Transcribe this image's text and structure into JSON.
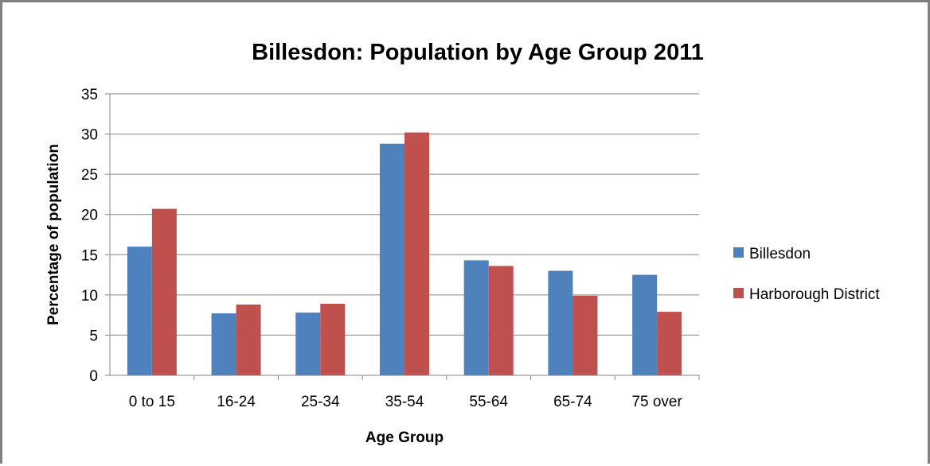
{
  "chart_data": {
    "type": "bar",
    "title": "Billesdon: Population by Age Group 2011",
    "xlabel": "Age Group",
    "ylabel": "Percentage of population",
    "categories": [
      "0 to 15",
      "16-24",
      "25-34",
      "35-54",
      "55-64",
      "65-74",
      "75 over"
    ],
    "series": [
      {
        "name": "Billesdon",
        "color": "#4F81BD",
        "values": [
          16.0,
          7.7,
          7.8,
          28.8,
          14.3,
          13.0,
          12.5
        ]
      },
      {
        "name": "Harborough District",
        "color": "#C0504D",
        "values": [
          20.7,
          8.8,
          8.9,
          30.2,
          13.6,
          9.9,
          7.9
        ]
      }
    ],
    "ylim": [
      0,
      35
    ],
    "yticks": [
      0,
      5,
      10,
      15,
      20,
      25,
      30,
      35
    ],
    "grid": true,
    "legend_position": "right"
  }
}
